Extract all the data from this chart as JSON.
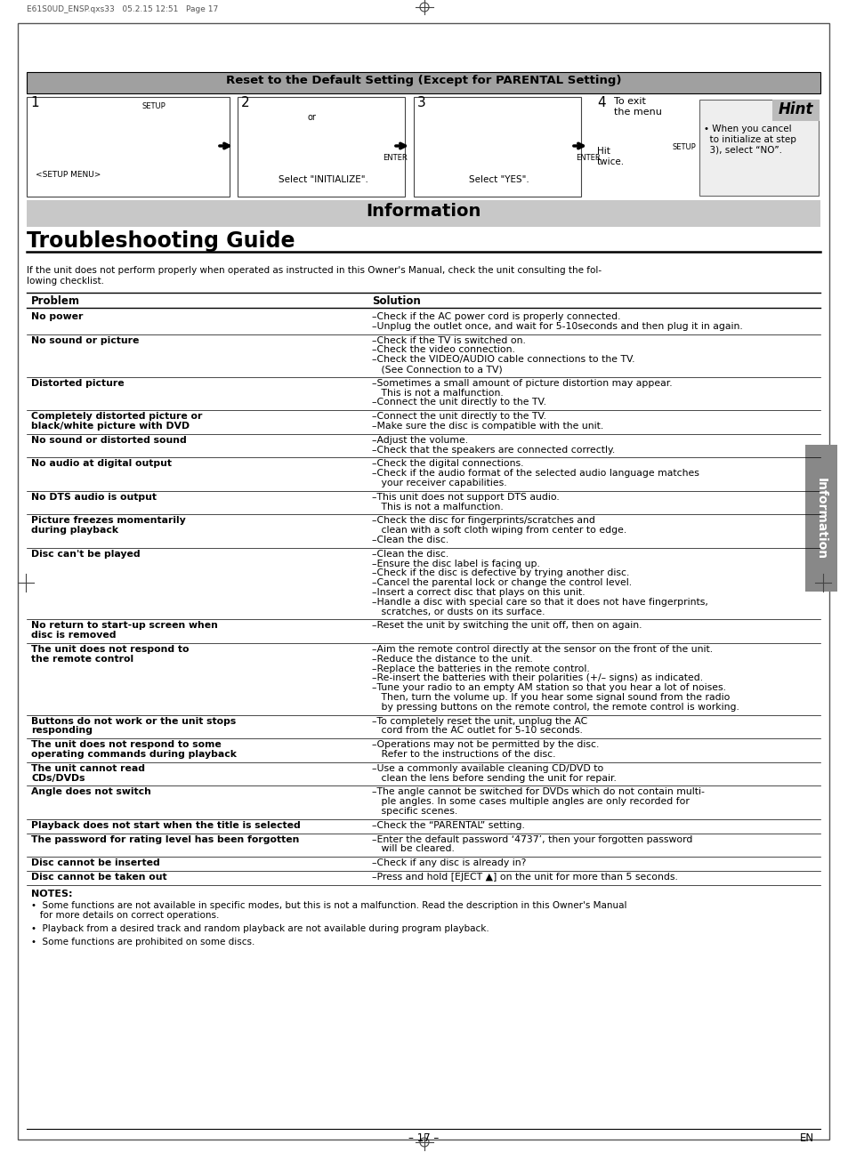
{
  "page_header": "E61S0UD_ENSP.qxs33   05.2.15 12:51   Page 17",
  "reset_title": "Reset to the Default Setting (Except for PARENTAL Setting)",
  "info_title": "Information",
  "section_title": "Troubleshooting Guide",
  "intro_text": "If the unit does not perform properly when operated as instructed in this Owner's Manual, check the unit consulting the fol-\nlowing checklist.",
  "col_problem": "Problem",
  "col_solution": "Solution",
  "problems": [
    {
      "problem": "No power",
      "solution": [
        "–Check if the AC power cord is properly connected.",
        "–Unplug the outlet once, and wait for 5-10seconds and then plug it in again."
      ]
    },
    {
      "problem": "No sound or picture",
      "solution": [
        "–Check if the TV is switched on.",
        "–Check the video connection.",
        "–Check the VIDEO/AUDIO cable connections to the TV.",
        "   (See Connection to a TV)"
      ]
    },
    {
      "problem": "Distorted picture",
      "solution": [
        "–Sometimes a small amount of picture distortion may appear.",
        "   This is not a malfunction.",
        "–Connect the unit directly to the TV."
      ]
    },
    {
      "problem": "Completely distorted picture or\nblack/white picture with DVD",
      "solution": [
        "–Connect the unit directly to the TV.",
        "–Make sure the disc is compatible with the unit."
      ]
    },
    {
      "problem": "No sound or distorted sound",
      "solution": [
        "–Adjust the volume.",
        "–Check that the speakers are connected correctly."
      ]
    },
    {
      "problem": "No audio at digital output",
      "solution": [
        "–Check the digital connections.",
        "–Check if the audio format of the selected audio language matches",
        "   your receiver capabilities."
      ]
    },
    {
      "problem": "No DTS audio is output",
      "solution": [
        "–This unit does not support DTS audio.",
        "   This is not a malfunction."
      ]
    },
    {
      "problem": "Picture freezes momentarily\nduring playback",
      "solution": [
        "–Check the disc for fingerprints/scratches and",
        "   clean with a soft cloth wiping from center to edge.",
        "–Clean the disc."
      ]
    },
    {
      "problem": "Disc can't be played",
      "solution": [
        "–Clean the disc.",
        "–Ensure the disc label is facing up.",
        "–Check if the disc is defective by trying another disc.",
        "–Cancel the parental lock or change the control level.",
        "–Insert a correct disc that plays on this unit.",
        "–Handle a disc with special care so that it does not have fingerprints,",
        "   scratches, or dusts on its surface."
      ]
    },
    {
      "problem": "No return to start-up screen when\ndisc is removed",
      "solution": [
        "–Reset the unit by switching the unit off, then on again."
      ]
    },
    {
      "problem": "The unit does not respond to\nthe remote control",
      "solution": [
        "–Aim the remote control directly at the sensor on the front of the unit.",
        "–Reduce the distance to the unit.",
        "–Replace the batteries in the remote control.",
        "–Re-insert the batteries with their polarities (+/– signs) as indicated.",
        "–Tune your radio to an empty AM station so that you hear a lot of noises.",
        "   Then, turn the volume up. If you hear some signal sound from the radio",
        "   by pressing buttons on the remote control, the remote control is working."
      ]
    },
    {
      "problem": "Buttons do not work or the unit stops\nresponding",
      "solution": [
        "–To completely reset the unit, unplug the AC",
        "   cord from the AC outlet for 5-10 seconds."
      ]
    },
    {
      "problem": "The unit does not respond to some\noperating commands during playback",
      "solution": [
        "–Operations may not be permitted by the disc.",
        "   Refer to the instructions of the disc."
      ]
    },
    {
      "problem": "The unit cannot read\nCDs/DVDs",
      "solution": [
        "–Use a commonly available cleaning CD/DVD to",
        "   clean the lens before sending the unit for repair."
      ]
    },
    {
      "problem": "Angle does not switch",
      "solution": [
        "–The angle cannot be switched for DVDs which do not contain multi-",
        "   ple angles. In some cases multiple angles are only recorded for",
        "   specific scenes."
      ]
    },
    {
      "problem": "Playback does not start when the title is selected",
      "solution": [
        "–Check the “PARENTAL” setting."
      ]
    },
    {
      "problem": "The password for rating level has been forgotten",
      "solution": [
        "–Enter the default password ‘4737’, then your forgotten password",
        "   will be cleared."
      ]
    },
    {
      "problem": "Disc cannot be inserted",
      "solution": [
        "–Check if any disc is already in?"
      ]
    },
    {
      "problem": "Disc cannot be taken out",
      "solution": [
        "–Press and hold [EJECT ▲] on the unit for more than 5 seconds."
      ]
    }
  ],
  "notes_title": "NOTES:",
  "notes": [
    "•  Some functions are not available in specific modes, but this is not a malfunction. Read the description in this Owner's Manual\n   for more details on correct operations.",
    "•  Playback from a desired track and random playback are not available during program playback.",
    "•  Some functions are prohibited on some discs."
  ],
  "page_footer_left": "– 17 –",
  "page_footer_right": "EN",
  "sidebar_text": "Information",
  "bg_color": "#ffffff",
  "info_bar_bg": "#c8c8c8",
  "reset_bar_bg": "#a0a0a0",
  "hint_bg": "#eeeeee",
  "hint_tab_bg": "#bbbbbb",
  "sidebar_bg": "#888888"
}
